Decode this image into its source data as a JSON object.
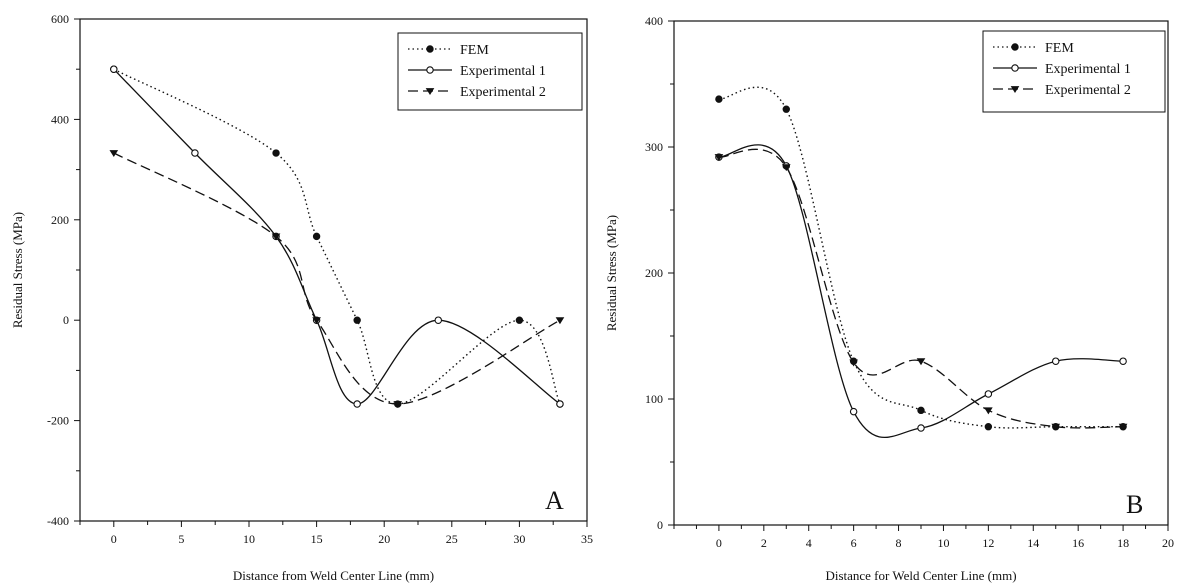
{
  "chart_data": [
    {
      "type": "line",
      "panel_label": "A",
      "xlabel": "Distance from Weld Center Line (mm)",
      "ylabel": "Residual Stress (MPa)",
      "xlim": [
        -2.5,
        35
      ],
      "ylim": [
        -400,
        600
      ],
      "xticks": [
        0,
        5,
        10,
        15,
        20,
        25,
        30,
        35
      ],
      "yticks": [
        -400,
        -200,
        0,
        200,
        400,
        600
      ],
      "grid": false,
      "legend_position": "top-right",
      "series": [
        {
          "name": "FEM",
          "style": "dotted",
          "marker": "filled-circle",
          "x": [
            0,
            12,
            15,
            18,
            21,
            30,
            33
          ],
          "y": [
            500,
            333,
            167,
            0,
            -167,
            0,
            -167
          ]
        },
        {
          "name": "Experimental 1",
          "style": "solid",
          "marker": "open-circle",
          "x": [
            0,
            6,
            12,
            15,
            18,
            24,
            33
          ],
          "y": [
            500,
            333,
            167,
            0,
            -167,
            0,
            -167
          ]
        },
        {
          "name": "Experimental 2",
          "style": "dashed",
          "marker": "filled-triangle-down",
          "x": [
            0,
            12,
            15,
            21,
            33
          ],
          "y": [
            333,
            167,
            0,
            -167,
            0
          ]
        }
      ]
    },
    {
      "type": "line",
      "panel_label": "B",
      "xlabel": "Distance for Weld Center Line (mm)",
      "ylabel": "Residual Stress (MPa)",
      "xlim": [
        -2,
        20
      ],
      "ylim": [
        0,
        400
      ],
      "xticks": [
        0,
        2,
        4,
        6,
        8,
        10,
        12,
        14,
        16,
        18,
        20
      ],
      "yticks": [
        0,
        100,
        200,
        300,
        400
      ],
      "grid": false,
      "legend_position": "top-right",
      "series": [
        {
          "name": "FEM",
          "style": "dotted",
          "marker": "filled-circle",
          "x": [
            0,
            3,
            6,
            9,
            12,
            15,
            18
          ],
          "y": [
            338,
            330,
            130,
            91,
            78,
            78,
            78
          ]
        },
        {
          "name": "Experimental 1",
          "style": "solid",
          "marker": "open-circle",
          "x": [
            0,
            3,
            6,
            9,
            12,
            15,
            18
          ],
          "y": [
            292,
            285,
            90,
            77,
            104,
            130,
            130
          ]
        },
        {
          "name": "Experimental 2",
          "style": "dashed",
          "marker": "filled-triangle-down",
          "x": [
            0,
            3,
            6,
            9,
            12,
            15,
            18
          ],
          "y": [
            292,
            284,
            129,
            130,
            91,
            78,
            78
          ]
        }
      ]
    }
  ]
}
